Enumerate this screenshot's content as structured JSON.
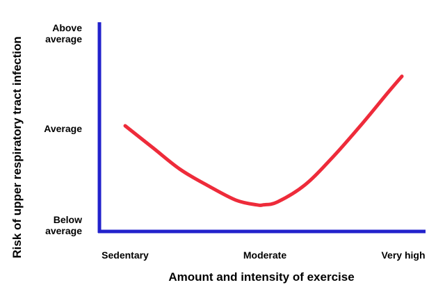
{
  "chart_data": {
    "type": "line",
    "title": "",
    "xlabel": "Amount and intensity of exercise",
    "ylabel": "Risk of upper respiratory tract infection",
    "x_tick_labels": [
      "Sedentary",
      "Moderate",
      "Very high"
    ],
    "y_tick_labels": [
      [
        "Above",
        "average"
      ],
      [
        "Average"
      ],
      [
        "Below",
        "average"
      ]
    ],
    "x_tick_positions": [
      0,
      1,
      2
    ],
    "y_tick_positions": [
      1,
      0,
      -1
    ],
    "xlim": [
      0,
      2
    ],
    "ylim": [
      -1,
      1
    ],
    "grid": false,
    "legend": "none",
    "axis_color": "#2222cc",
    "series": [
      {
        "color": "#ee2b3a",
        "points": [
          [
            0.0,
            0.0
          ],
          [
            0.2,
            -0.23
          ],
          [
            0.4,
            -0.46
          ],
          [
            0.6,
            -0.63
          ],
          [
            0.8,
            -0.78
          ],
          [
            0.95,
            -0.83
          ],
          [
            1.0,
            -0.83
          ],
          [
            1.1,
            -0.8
          ],
          [
            1.3,
            -0.62
          ],
          [
            1.5,
            -0.33
          ],
          [
            1.7,
            0.0
          ],
          [
            1.9,
            0.35
          ],
          [
            2.0,
            0.52
          ]
        ]
      }
    ]
  }
}
